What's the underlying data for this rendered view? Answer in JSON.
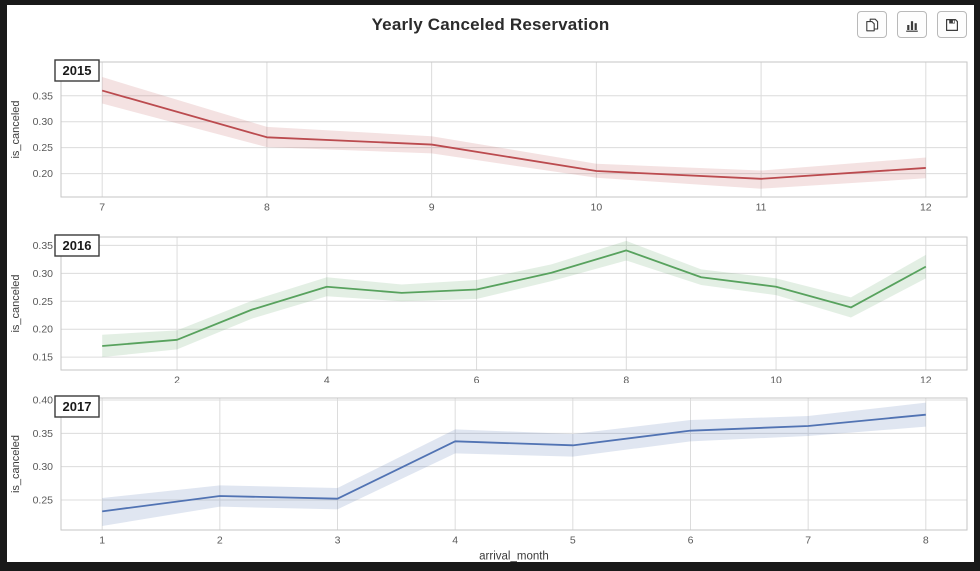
{
  "title": "Yearly Canceled Reservation",
  "toolbar": {
    "buttons": [
      {
        "icon": "copy-icon",
        "label": "copy"
      },
      {
        "icon": "bar-chart-icon",
        "label": "chart"
      },
      {
        "icon": "save-icon",
        "label": "save"
      }
    ]
  },
  "colors": {
    "frame": "#191919",
    "panel_bg": "#ffffff",
    "grid": "#dcdcdc",
    "spine": "#c6c6c6",
    "tick_text": "#595959",
    "axis_text": "#3c3c3c",
    "red": "#bb4b4f",
    "green": "#58a25e",
    "blue": "#5173b3"
  },
  "chart_data": [
    {
      "type": "line",
      "year_label": "2015",
      "ylabel": "is_canceled",
      "xlabel": "",
      "x": [
        7,
        8,
        9,
        10,
        11,
        12
      ],
      "values": [
        0.36,
        0.27,
        0.256,
        0.205,
        0.19,
        0.211
      ],
      "band_low": [
        0.335,
        0.251,
        0.239,
        0.192,
        0.171,
        0.191
      ],
      "band_high": [
        0.386,
        0.29,
        0.272,
        0.219,
        0.206,
        0.231
      ],
      "x_ticks": [
        7,
        8,
        9,
        10,
        11,
        12
      ],
      "y_ticks": [
        0.2,
        0.25,
        0.3,
        0.35
      ],
      "xlim": [
        6.75,
        12.25
      ],
      "ylim": [
        0.155,
        0.415
      ],
      "grid": true,
      "line_color": "#bb4b4f",
      "band_color": "rgba(184,73,77,0.16)"
    },
    {
      "type": "line",
      "year_label": "2016",
      "ylabel": "is_canceled",
      "xlabel": "",
      "x": [
        1,
        2,
        3,
        4,
        5,
        6,
        7,
        8,
        9,
        10,
        11,
        12
      ],
      "values": [
        0.17,
        0.181,
        0.235,
        0.276,
        0.265,
        0.271,
        0.301,
        0.341,
        0.293,
        0.276,
        0.239,
        0.312
      ],
      "band_low": [
        0.15,
        0.164,
        0.219,
        0.259,
        0.25,
        0.254,
        0.286,
        0.323,
        0.279,
        0.261,
        0.221,
        0.291
      ],
      "band_high": [
        0.19,
        0.198,
        0.251,
        0.293,
        0.28,
        0.288,
        0.316,
        0.358,
        0.307,
        0.291,
        0.257,
        0.333
      ],
      "x_ticks": [
        2,
        4,
        6,
        8,
        10,
        12
      ],
      "y_ticks": [
        0.15,
        0.2,
        0.25,
        0.3,
        0.35
      ],
      "xlim": [
        0.45,
        12.55
      ],
      "ylim": [
        0.127,
        0.365
      ],
      "grid": true,
      "line_color": "#58a25e",
      "band_color": "rgba(88,162,94,0.17)"
    },
    {
      "type": "line",
      "year_label": "2017",
      "ylabel": "is_canceled",
      "xlabel": "arrival_month",
      "x": [
        1,
        2,
        3,
        4,
        5,
        6,
        7,
        8
      ],
      "values": [
        0.233,
        0.256,
        0.252,
        0.338,
        0.332,
        0.354,
        0.361,
        0.378
      ],
      "band_low": [
        0.211,
        0.24,
        0.236,
        0.32,
        0.315,
        0.338,
        0.346,
        0.36
      ],
      "band_high": [
        0.253,
        0.272,
        0.268,
        0.356,
        0.349,
        0.37,
        0.376,
        0.396
      ],
      "x_ticks": [
        1,
        2,
        3,
        4,
        5,
        6,
        7,
        8
      ],
      "y_ticks": [
        0.25,
        0.3,
        0.35,
        0.4
      ],
      "xlim": [
        0.65,
        8.35
      ],
      "ylim": [
        0.205,
        0.403
      ],
      "grid": true,
      "line_color": "#5173b3",
      "band_color": "rgba(81,115,179,0.18)"
    }
  ]
}
